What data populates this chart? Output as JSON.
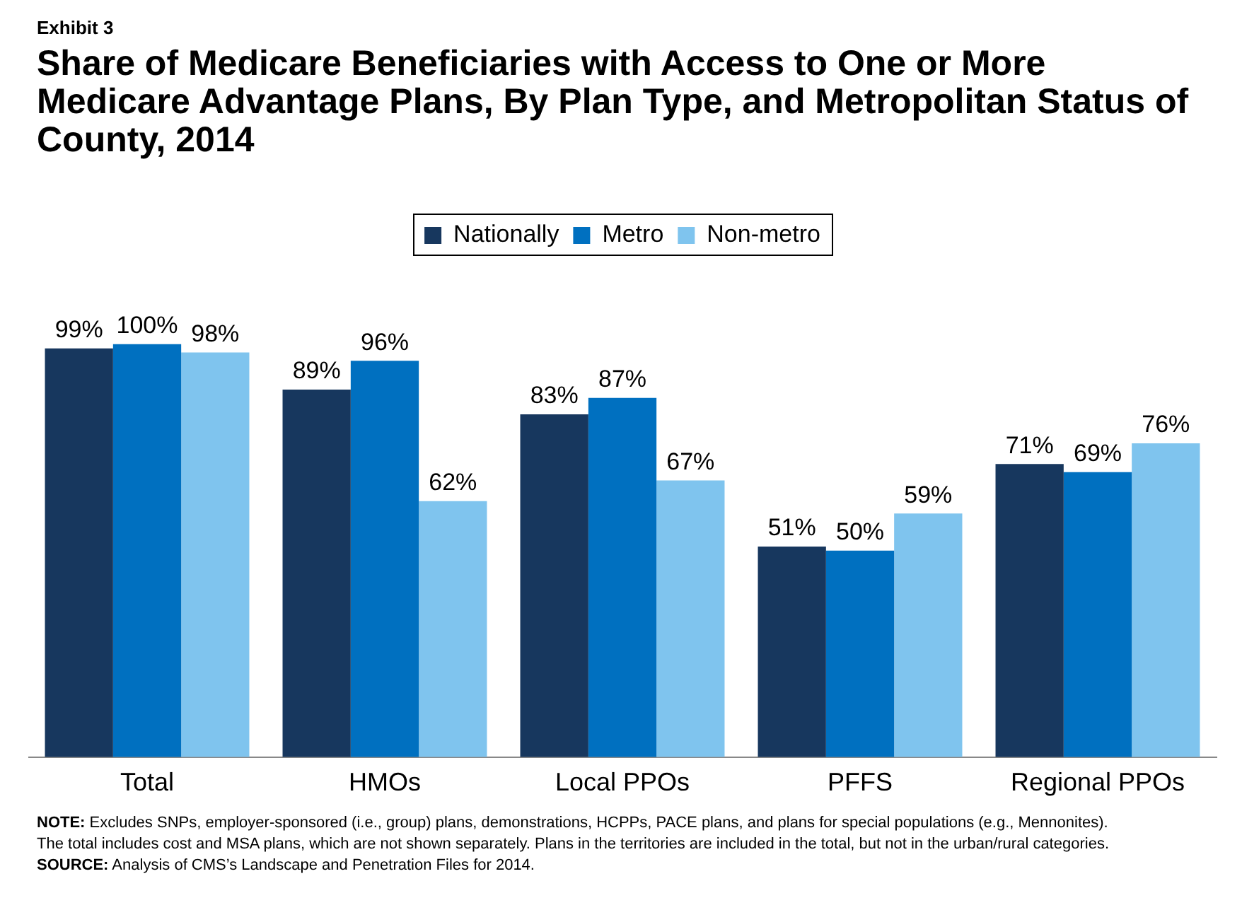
{
  "chart_data": {
    "type": "bar",
    "title": "Share of Medicare Beneficiaries with Access to One or More Medicare Advantage Plans, By Plan Type, and Metropolitan Status of County, 2014",
    "annotations": [
      "Exhibit 3",
      "NOTE: Excludes SNPs, employer-sponsored (i.e., group) plans, demonstrations, HCPPs, PACE plans, and plans for special populations (e.g., Mennonites). The total includes cost and MSA plans, which are not shown separately.  Plans in the territories are included in the total, but not in the urban/rural categories.",
      "SOURCE: Analysis of CMS’s Landscape and Penetration Files for 2014."
    ],
    "categories": [
      "Total",
      "HMOs",
      "Local PPOs",
      "PFFS",
      "Regional PPOs"
    ],
    "series": [
      {
        "name": "Nationally",
        "color": "#17375e",
        "values": [
          99,
          89,
          83,
          51,
          71
        ],
        "value_labels": [
          "99%",
          "89%",
          "83%",
          "51%",
          "71%"
        ]
      },
      {
        "name": "Metro",
        "color": "#0070c0",
        "values": [
          100,
          96,
          87,
          50,
          69
        ],
        "value_labels": [
          "100%",
          "96%",
          "87%",
          "50%",
          "69%"
        ]
      },
      {
        "name": "Non-metro",
        "color": "#7fc4ee",
        "values": [
          98,
          62,
          67,
          59,
          76
        ],
        "value_labels": [
          "98%",
          "62%",
          "67%",
          "59%",
          "76%"
        ]
      }
    ],
    "legend": "top",
    "grid": false
  }
}
